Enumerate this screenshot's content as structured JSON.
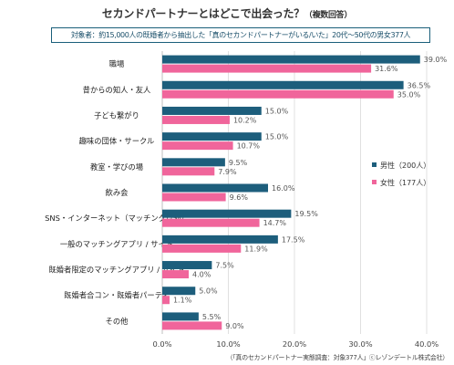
{
  "title": {
    "main": "セカンドパートナーとはどこで出会った？",
    "note": "（複数回答）"
  },
  "subtitle": "対象者：約15,000人の既婚者から抽出した「真のセカンドパートナーがいる/いた」20代〜50代の男女377人",
  "source": "（「真のセカンドパートナー実態調査：対象377人」ⓒレゾンデートル株式会社）",
  "colors": {
    "male": "#1d5e7c",
    "female": "#f0659b"
  },
  "chart_data": {
    "type": "bar",
    "orientation": "horizontal",
    "categories": [
      "職場",
      "昔からの知人・友人",
      "子ども繋がり",
      "趣味の団体・サークル",
      "教室・学びの場",
      "飲み会",
      "SNS・インターネット（マッチング以外）",
      "一般のマッチングアプリ / サイト",
      "既婚者限定のマッチングアプリ / サイト",
      "既婚者合コン・既婚者パーティ",
      "その他"
    ],
    "series": [
      {
        "name": "男性（200人）",
        "values": [
          39.0,
          36.5,
          15.0,
          15.0,
          9.5,
          16.0,
          19.5,
          17.5,
          7.5,
          5.0,
          5.5
        ]
      },
      {
        "name": "女性（177人）",
        "values": [
          31.6,
          35.0,
          10.2,
          10.7,
          7.9,
          9.6,
          14.7,
          11.9,
          4.0,
          1.1,
          9.0
        ]
      }
    ],
    "value_labels": [
      [
        "39.0%",
        "36.5%",
        "15.0%",
        "15.0%",
        "9.5%",
        "16.0%",
        "19.5%",
        "17.5%",
        "7.5%",
        "5.0%",
        "5.5%"
      ],
      [
        "31.6%",
        "35.0%",
        "10.2%",
        "10.7%",
        "7.9%",
        "9.6%",
        "14.7%",
        "11.9%",
        "4.0%",
        "1.1%",
        "9.0%"
      ]
    ],
    "xticks": [
      "0.0%",
      "10.0%",
      "20.0%",
      "30.0%",
      "40.0%"
    ],
    "xlim": [
      0,
      40
    ],
    "grid": true,
    "legend": "right"
  }
}
